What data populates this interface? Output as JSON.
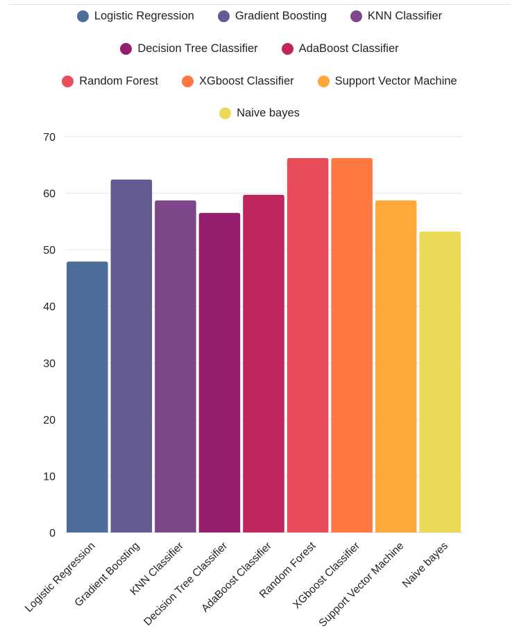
{
  "chart_data": {
    "type": "bar",
    "title": "",
    "xlabel": "",
    "ylabel": "",
    "ylim": [
      0,
      70
    ],
    "yticks": [
      0,
      10,
      20,
      30,
      40,
      50,
      60,
      70
    ],
    "grid": true,
    "legend_position": "top",
    "categories": [
      "Logistic Regression",
      "Gradient Boosting",
      "KNN Classifier",
      "Decision Tree Classifier",
      "AdaBoost Classifier",
      "Random Forest",
      "XGboost Classifier",
      "Support Vector Machine",
      "Naive bayes"
    ],
    "values": [
      47.9,
      62.4,
      58.7,
      56.5,
      59.7,
      66.2,
      66.2,
      58.7,
      53.2
    ],
    "colors": [
      "#4e6e9a",
      "#635b91",
      "#7e4789",
      "#951f6e",
      "#c0265d",
      "#e84e5a",
      "#ff7842",
      "#ffa83a",
      "#ecd95a"
    ]
  }
}
